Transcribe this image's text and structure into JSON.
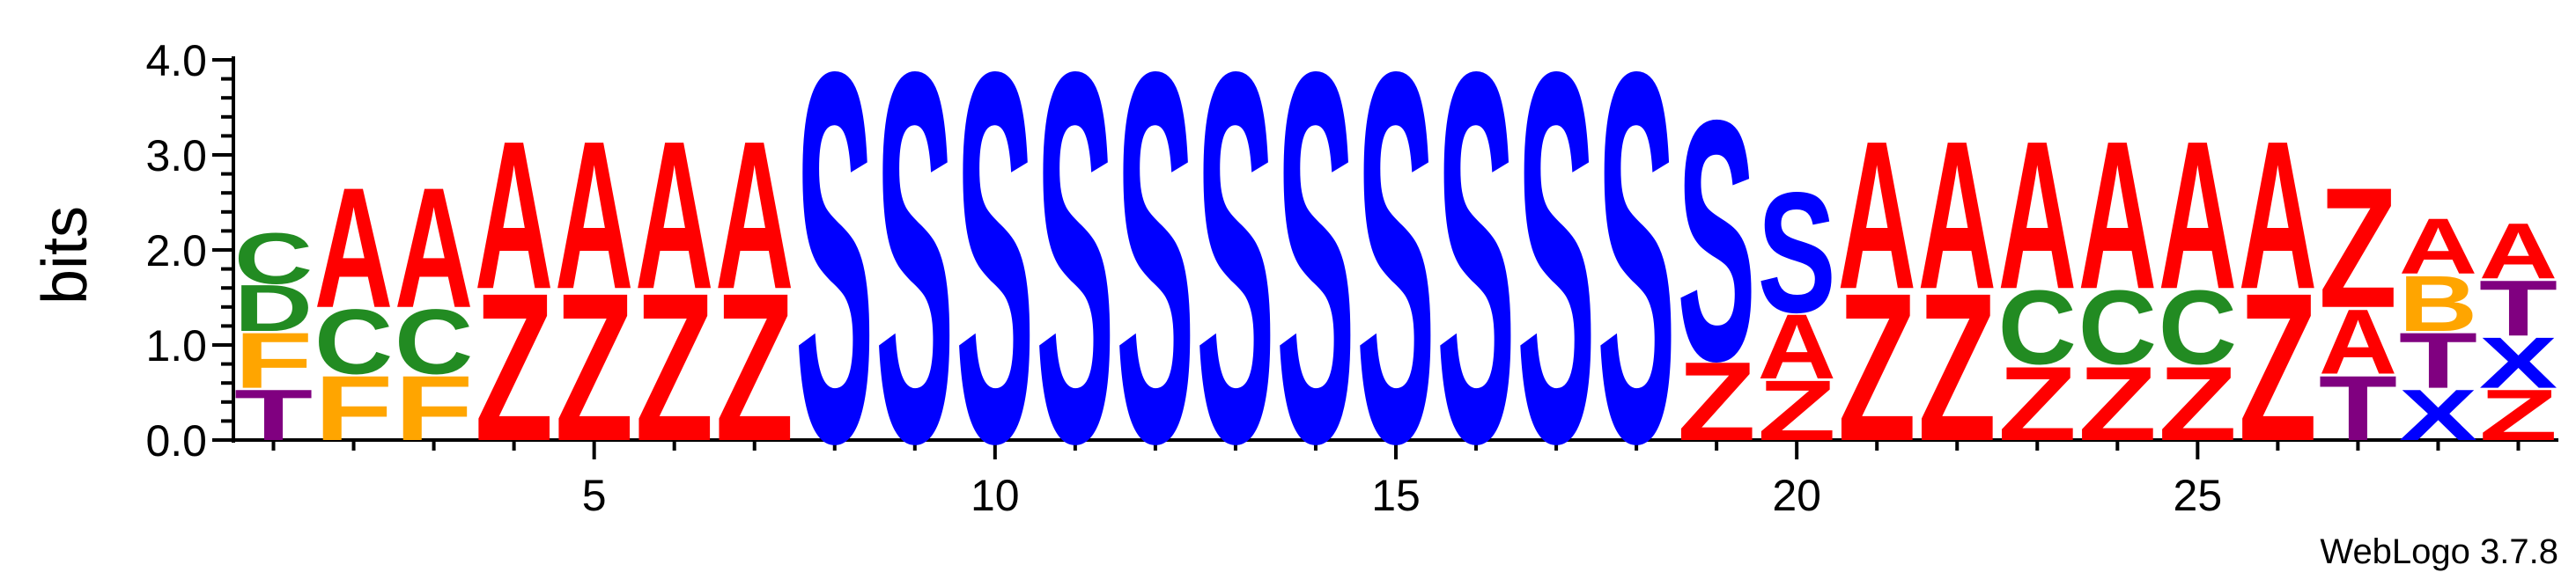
{
  "chart_data": {
    "type": "sequence-logo",
    "ylabel": "bits",
    "ylim": [
      0,
      4.0
    ],
    "y_ticks": [
      "0.0",
      "1.0",
      "2.0",
      "3.0",
      "4.0"
    ],
    "x_ticks": [
      5,
      10,
      15,
      20,
      25
    ],
    "x_range": [
      1,
      29
    ],
    "credit": "WebLogo 3.7.8",
    "colors": {
      "A": "#ff0000",
      "Z": "#ff0000",
      "S": "#0000ff",
      "C": "#228b22",
      "D": "#228b22",
      "F": "#ffa500",
      "B": "#ffa500",
      "T": "#800080",
      "X": "#0000ff"
    },
    "positions": [
      {
        "pos": 1,
        "stack": [
          [
            "T",
            0.55
          ],
          [
            "F",
            0.6
          ],
          [
            "D",
            0.5
          ],
          [
            "C",
            0.55
          ]
        ]
      },
      {
        "pos": 2,
        "stack": [
          [
            "F",
            0.7
          ],
          [
            "C",
            0.7
          ],
          [
            "A",
            1.3
          ]
        ]
      },
      {
        "pos": 3,
        "stack": [
          [
            "F",
            0.7
          ],
          [
            "C",
            0.7
          ],
          [
            "A",
            1.3
          ]
        ]
      },
      {
        "pos": 4,
        "stack": [
          [
            "Z",
            1.6
          ],
          [
            "A",
            1.6
          ]
        ]
      },
      {
        "pos": 5,
        "stack": [
          [
            "Z",
            1.6
          ],
          [
            "A",
            1.6
          ]
        ]
      },
      {
        "pos": 6,
        "stack": [
          [
            "Z",
            1.6
          ],
          [
            "A",
            1.6
          ]
        ]
      },
      {
        "pos": 7,
        "stack": [
          [
            "Z",
            1.6
          ],
          [
            "A",
            1.6
          ]
        ]
      },
      {
        "pos": 8,
        "stack": [
          [
            "S",
            4.0
          ]
        ]
      },
      {
        "pos": 9,
        "stack": [
          [
            "S",
            4.0
          ]
        ]
      },
      {
        "pos": 10,
        "stack": [
          [
            "S",
            4.0
          ]
        ]
      },
      {
        "pos": 11,
        "stack": [
          [
            "S",
            4.0
          ]
        ]
      },
      {
        "pos": 12,
        "stack": [
          [
            "S",
            4.0
          ]
        ]
      },
      {
        "pos": 13,
        "stack": [
          [
            "S",
            4.0
          ]
        ]
      },
      {
        "pos": 14,
        "stack": [
          [
            "S",
            4.0
          ]
        ]
      },
      {
        "pos": 15,
        "stack": [
          [
            "S",
            4.0
          ]
        ]
      },
      {
        "pos": 16,
        "stack": [
          [
            "S",
            4.0
          ]
        ]
      },
      {
        "pos": 17,
        "stack": [
          [
            "S",
            4.0
          ]
        ]
      },
      {
        "pos": 18,
        "stack": [
          [
            "S",
            4.0
          ]
        ]
      },
      {
        "pos": 19,
        "stack": [
          [
            "Z",
            0.85
          ],
          [
            "S",
            2.6
          ]
        ]
      },
      {
        "pos": 20,
        "stack": [
          [
            "Z",
            0.65
          ],
          [
            "A",
            0.7
          ],
          [
            "S",
            1.3
          ]
        ]
      },
      {
        "pos": 21,
        "stack": [
          [
            "Z",
            1.6
          ],
          [
            "A",
            1.6
          ]
        ]
      },
      {
        "pos": 22,
        "stack": [
          [
            "Z",
            1.6
          ],
          [
            "A",
            1.6
          ]
        ]
      },
      {
        "pos": 23,
        "stack": [
          [
            "Z",
            0.8
          ],
          [
            "C",
            0.8
          ],
          [
            "A",
            1.6
          ]
        ]
      },
      {
        "pos": 24,
        "stack": [
          [
            "Z",
            0.8
          ],
          [
            "C",
            0.8
          ],
          [
            "A",
            1.6
          ]
        ]
      },
      {
        "pos": 25,
        "stack": [
          [
            "Z",
            0.8
          ],
          [
            "C",
            0.8
          ],
          [
            "A",
            1.6
          ]
        ]
      },
      {
        "pos": 26,
        "stack": [
          [
            "Z",
            1.6
          ],
          [
            "A",
            1.6
          ]
        ]
      },
      {
        "pos": 27,
        "stack": [
          [
            "T",
            0.7
          ],
          [
            "A",
            0.7
          ],
          [
            "Z",
            1.3
          ]
        ]
      },
      {
        "pos": 28,
        "stack": [
          [
            "X",
            0.55
          ],
          [
            "T",
            0.6
          ],
          [
            "B",
            0.6
          ],
          [
            "A",
            0.6
          ]
        ]
      },
      {
        "pos": 29,
        "stack": [
          [
            "Z",
            0.55
          ],
          [
            "X",
            0.55
          ],
          [
            "T",
            0.6
          ],
          [
            "A",
            0.6
          ]
        ]
      }
    ]
  }
}
